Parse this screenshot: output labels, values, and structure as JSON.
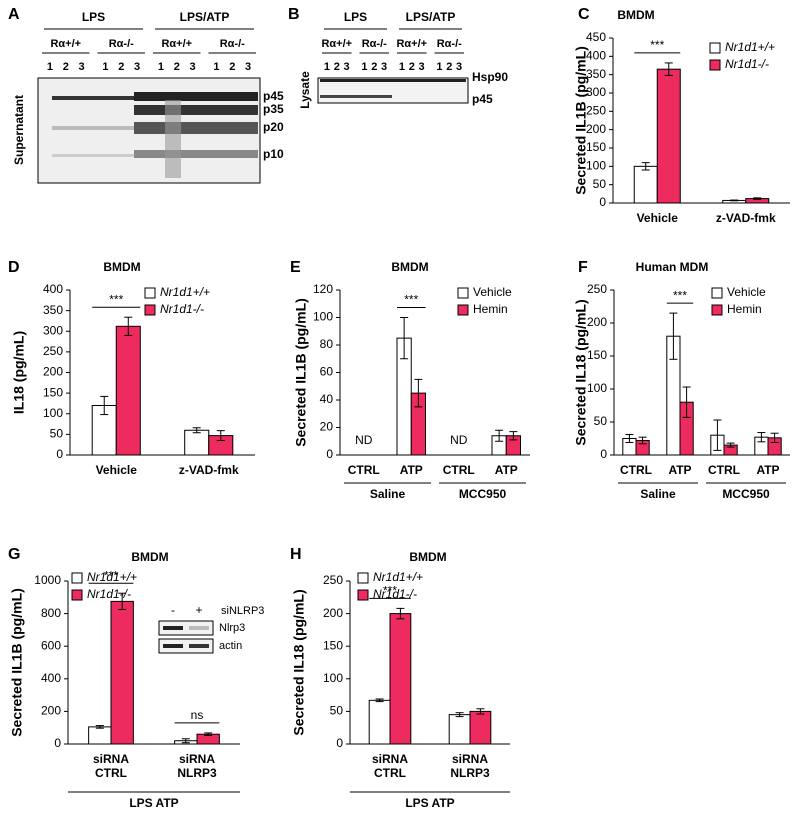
{
  "blot_a": {
    "panel": "A",
    "groups": [
      {
        "label": "LPS",
        "genotypes": [
          "Rα+/+",
          "Rα-/-"
        ]
      },
      {
        "label": "LPS/ATP",
        "genotypes": [
          "Rα+/+",
          "Rα-/-"
        ]
      }
    ],
    "lanes": [
      "1",
      "2",
      "3"
    ],
    "side_label": "Supernatant",
    "bands": [
      "p45",
      "p35",
      "p20",
      "p10"
    ]
  },
  "blot_b": {
    "panel": "B",
    "groups": [
      {
        "label": "LPS",
        "genotypes": [
          "Rα+/+",
          "Rα-/-"
        ]
      },
      {
        "label": "LPS/ATP",
        "genotypes": [
          "Rα+/+",
          "Rα-/-"
        ]
      }
    ],
    "lanes": [
      "1",
      "2",
      "3"
    ],
    "side_label": "Lysate",
    "bands": [
      "Hsp90",
      "p45"
    ]
  },
  "chart_data": [
    {
      "panel": "C",
      "type": "bar",
      "title": "BMDM",
      "ylabel": "Secreted IL1B (pg/mL)",
      "categories": [
        "Vehicle",
        "z-VAD-fmk"
      ],
      "series": [
        {
          "name": "Nr1d1+/+",
          "color": "#ffffff",
          "values": [
            100,
            7
          ],
          "errors": [
            10,
            1
          ]
        },
        {
          "name": "Nr1d1-/-",
          "color": "#ee2b5f",
          "values": [
            365,
            12
          ],
          "errors": [
            17,
            2
          ]
        }
      ],
      "annotations": [
        "***",
        null
      ],
      "ylim": [
        0,
        450
      ],
      "yticks": [
        0,
        50,
        100,
        150,
        200,
        250,
        300,
        350,
        400,
        450
      ]
    },
    {
      "panel": "D",
      "type": "bar",
      "title": "BMDM",
      "ylabel": "IL18 (pg/mL)",
      "categories": [
        "Vehicle",
        "z-VAD-fmk"
      ],
      "series": [
        {
          "name": "Nr1d1+/+",
          "color": "#ffffff",
          "values": [
            120,
            60
          ],
          "errors": [
            22,
            6
          ]
        },
        {
          "name": "Nr1d1-/-",
          "color": "#ee2b5f",
          "values": [
            312,
            47
          ],
          "errors": [
            22,
            12
          ]
        }
      ],
      "annotations": [
        "***",
        null
      ],
      "ylim": [
        0,
        400
      ],
      "yticks": [
        0,
        50,
        100,
        150,
        200,
        250,
        300,
        350,
        400
      ]
    },
    {
      "panel": "E",
      "type": "bar",
      "title": "BMDM",
      "ylabel": "Secreted IL1B (pg/mL)",
      "groups": [
        {
          "label": "Saline",
          "categories": [
            "CTRL",
            "ATP"
          ]
        },
        {
          "label": "MCC950",
          "categories": [
            "CTRL",
            "ATP"
          ]
        }
      ],
      "series": [
        {
          "name": "Vehicle",
          "color": "#ffffff",
          "values": [
            null,
            85,
            null,
            14
          ],
          "errors": [
            null,
            15,
            null,
            4
          ]
        },
        {
          "name": "Hemin",
          "color": "#ee2b5f",
          "values": [
            null,
            45,
            null,
            14
          ],
          "errors": [
            null,
            10,
            null,
            3
          ]
        }
      ],
      "nd_label": "ND",
      "annotations": [
        null,
        "***",
        null,
        null
      ],
      "ylim": [
        0,
        120
      ],
      "yticks": [
        0,
        20,
        40,
        60,
        80,
        100,
        120
      ]
    },
    {
      "panel": "F",
      "type": "bar",
      "title": "Human MDM",
      "ylabel": "Secreted IL18 (pg/mL)",
      "groups": [
        {
          "label": "Saline",
          "categories": [
            "CTRL",
            "ATP"
          ]
        },
        {
          "label": "MCC950",
          "categories": [
            "CTRL",
            "ATP"
          ]
        }
      ],
      "series": [
        {
          "name": "Vehicle",
          "color": "#ffffff",
          "values": [
            25,
            180,
            30,
            27
          ],
          "errors": [
            6,
            35,
            23,
            7
          ]
        },
        {
          "name": "Hemin",
          "color": "#ee2b5f",
          "values": [
            22,
            80,
            15,
            26
          ],
          "errors": [
            5,
            23,
            3,
            7
          ]
        }
      ],
      "annotations": [
        null,
        "***",
        null,
        null
      ],
      "ylim": [
        0,
        250
      ],
      "yticks": [
        0,
        50,
        100,
        150,
        200,
        250
      ]
    },
    {
      "panel": "G",
      "type": "bar",
      "title": "BMDM",
      "ylabel": "Secreted IL1B (pg/mL)",
      "categories": [
        [
          "siRNA",
          "CTRL"
        ],
        [
          "siRNA",
          "NLRP3"
        ]
      ],
      "series": [
        {
          "name": "Nr1d1+/+",
          "color": "#ffffff",
          "values": [
            105,
            20
          ],
          "errors": [
            8,
            12
          ]
        },
        {
          "name": "Nr1d1-/-",
          "color": "#ee2b5f",
          "values": [
            875,
            60
          ],
          "errors": [
            50,
            8
          ]
        }
      ],
      "annotations": [
        "***",
        "ns"
      ],
      "footer": "LPS ATP",
      "inset": {
        "treatment": "siNLRP3",
        "lanes": [
          "-",
          "+"
        ],
        "bands": [
          "Nlrp3",
          "actin"
        ]
      },
      "ylim": [
        0,
        1000
      ],
      "yticks": [
        0,
        200,
        400,
        600,
        800,
        1000
      ]
    },
    {
      "panel": "H",
      "type": "bar",
      "title": "BMDM",
      "ylabel": "Secreted IL18 (pg/mL)",
      "categories": [
        [
          "siRNA",
          "CTRL"
        ],
        [
          "siRNA",
          "NLRP3"
        ]
      ],
      "series": [
        {
          "name": "Nr1d1+/+",
          "color": "#ffffff",
          "values": [
            67,
            45
          ],
          "errors": [
            2,
            3
          ]
        },
        {
          "name": "Nr1d1-/-",
          "color": "#ee2b5f",
          "values": [
            200,
            50
          ],
          "errors": [
            8,
            4
          ]
        }
      ],
      "annotations": [
        "***",
        null
      ],
      "footer": "LPS ATP",
      "ylim": [
        0,
        250
      ],
      "yticks": [
        0,
        50,
        100,
        150,
        200,
        250
      ]
    }
  ]
}
